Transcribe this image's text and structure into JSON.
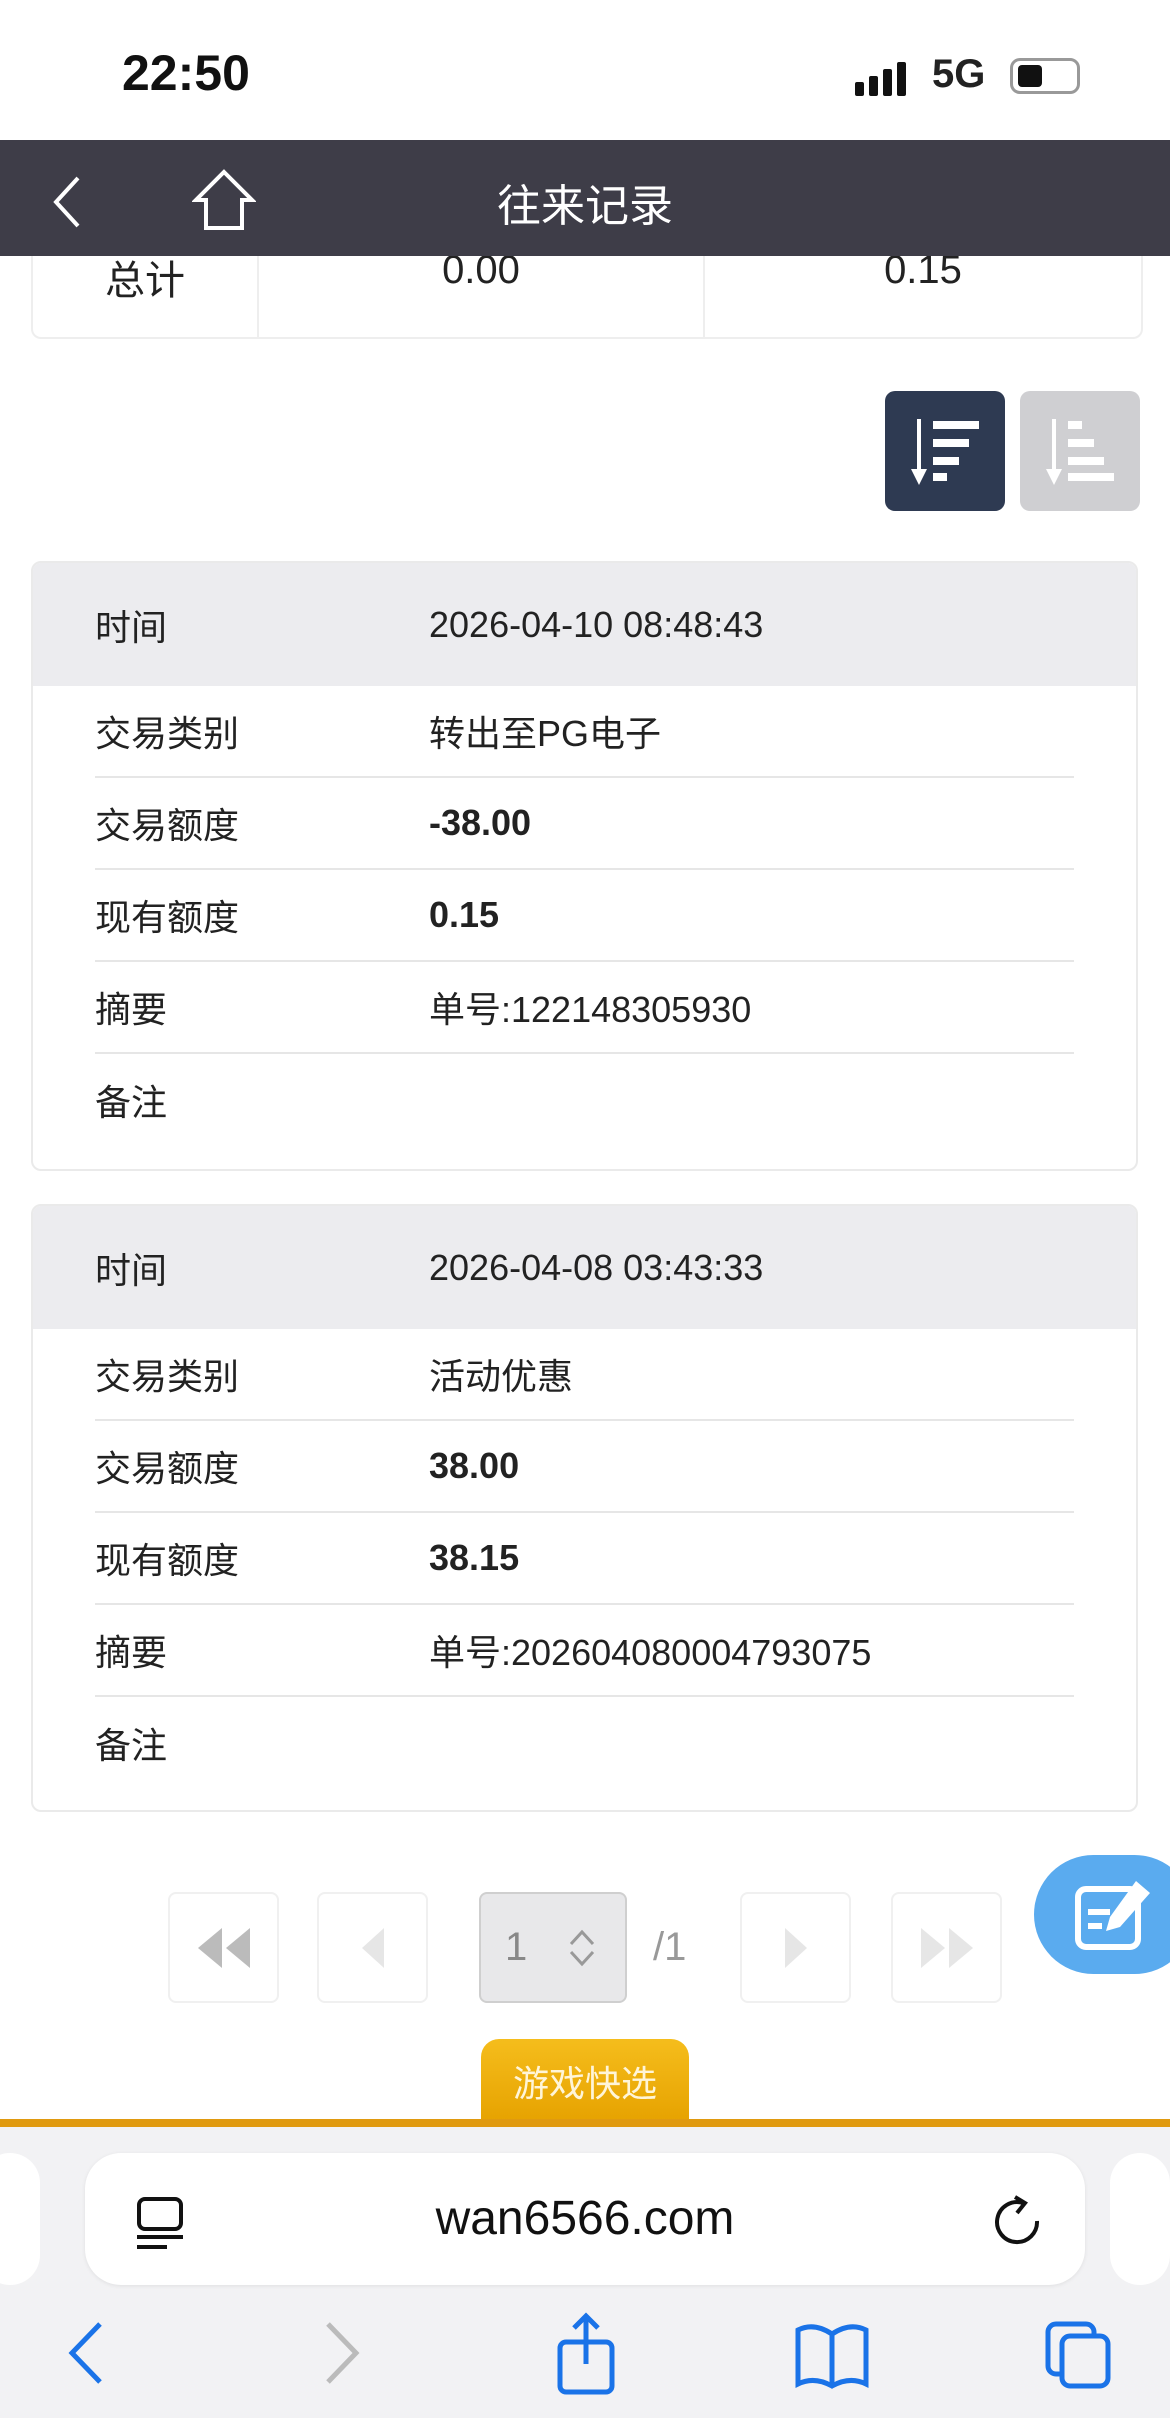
{
  "status_bar": {
    "time": "22:50",
    "network": "5G"
  },
  "nav": {
    "title": "往来记录"
  },
  "summary": {
    "label": "总计",
    "col1": "0.00",
    "col2": "0.15"
  },
  "records": [
    {
      "rows": [
        {
          "label": "时间",
          "value": "2026-04-10 08:48:43"
        },
        {
          "label": "交易类别",
          "value": "转出至PG电子"
        },
        {
          "label": "交易额度",
          "value": "-38.00"
        },
        {
          "label": "现有额度",
          "value": "0.15"
        },
        {
          "label": "摘要",
          "value": "单号:122148305930"
        },
        {
          "label": "备注",
          "value": ""
        }
      ]
    },
    {
      "rows": [
        {
          "label": "时间",
          "value": "2026-04-08 03:43:33"
        },
        {
          "label": "交易类别",
          "value": "活动优惠"
        },
        {
          "label": "交易额度",
          "value": "38.00"
        },
        {
          "label": "现有额度",
          "value": "38.15"
        },
        {
          "label": "摘要",
          "value": "单号:202604080004793075"
        },
        {
          "label": "备注",
          "value": ""
        }
      ]
    }
  ],
  "pagination": {
    "current": "1",
    "total": "/1"
  },
  "game_tab": "游戏快选",
  "browser": {
    "url": "wan6566.com"
  },
  "colors": {
    "nav": "#3e3d48",
    "accent": "#e6a200",
    "fab": "#5aabef",
    "browser_blue": "#1a73e8"
  }
}
